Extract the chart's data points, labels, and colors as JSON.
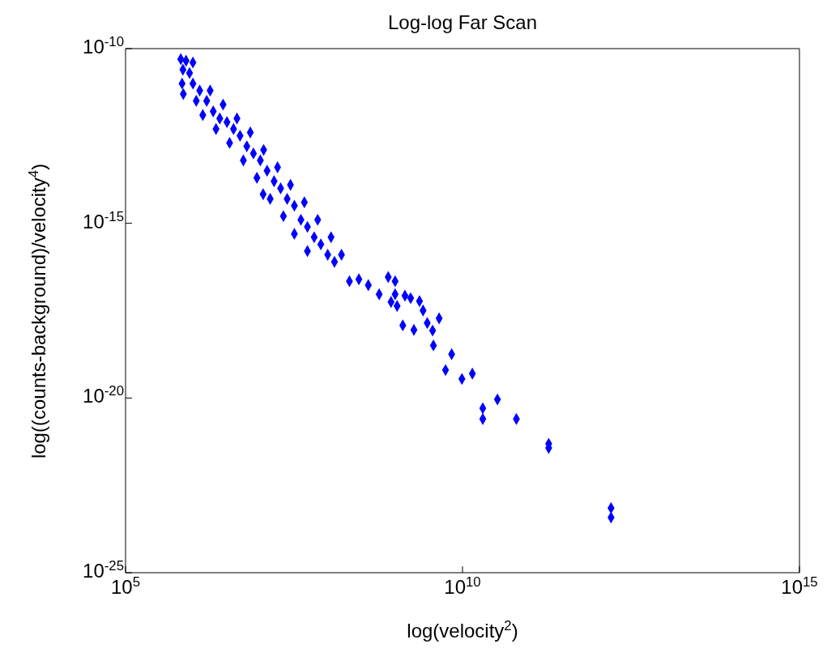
{
  "chart_data": {
    "type": "scatter",
    "title": "Log-log Far Scan",
    "xlabel": "log(velocity$^{2}$)",
    "ylabel": "log((counts-background)/velocity$^{4}$)",
    "log": "xy",
    "grid": false,
    "legend": false,
    "marker": "diamond",
    "xlim": [
      100000.0,
      1000000000000000.0
    ],
    "xticks": [
      {
        "value": 100000.0,
        "label": "10$^{5}$"
      },
      {
        "value": 10000000000.0,
        "label": "10$^{10}$"
      },
      {
        "value": 1000000000000000.0,
        "label": "10$^{15}$"
      }
    ],
    "ylim": [
      1e-25,
      1e-10
    ],
    "yticks": [
      {
        "value": 1e-25,
        "label": "10$^{-25}$"
      },
      {
        "value": 1e-20,
        "label": "10$^{-20}$"
      },
      {
        "value": 1e-15,
        "label": "10$^{-15}$"
      },
      {
        "value": 1e-10,
        "label": "10$^{-10}$"
      }
    ],
    "series": [
      {
        "color": "#0000ff",
        "x": [
          660000.0,
          790000.0,
          710000.0,
          890000.0,
          690000.0,
          1000000.0,
          1260000.0,
          720000.0,
          1120000.0,
          1600000.0,
          2000000.0,
          1400000.0,
          2500000.0,
          3200000.0,
          2200000.0,
          4000000.0,
          5000000.0,
          3500000.0,
          6300000.0,
          7900000.0,
          5600000.0,
          10000000.0,
          12600000.0,
          8900000.0,
          16000000.0,
          20000000.0,
          14000000.0,
          25000000.0,
          32000000.0,
          22000000.0,
          40000000.0,
          50000000.0,
          32000000.0,
          63000000.0,
          79000000.0,
          50000000.0,
          100000000.0,
          126000000.0,
          11000000.0,
          210000000.0,
          290000000.0,
          400000000.0,
          580000000.0,
          1000000000.0,
          1400000000.0,
          1700000000.0,
          2300000000.0,
          870000000.0,
          1070000000.0,
          2600000000.0,
          4500000000.0,
          1300000000.0,
          1900000000.0,
          3000000000.0,
          3600000000.0,
          3700000000.0,
          6900000000.0,
          1000000000.0,
          790000000.0,
          5600000000.0,
          9800000000.0,
          14000000000.0,
          33000000000.0,
          20000000000.0,
          20000000000.0,
          63000000000.0,
          190000000000.0,
          190000000000.0,
          1600000000000.0,
          1600000000000.0,
          1000000.0,
          1800000.0,
          2800000.0,
          4500000.0,
          7100000.0,
          11200000.0,
          18000000.0,
          28000000.0,
          45000000.0,
          71000000.0,
          112000000.0,
          160000000.0
        ],
        "values": [
          5e-11,
          4.5e-11,
          2.5e-11,
          2e-11,
          1e-11,
          1e-11,
          6.3e-12,
          5e-12,
          3.2e-12,
          3.2e-12,
          1.6e-12,
          1.26e-12,
          1e-12,
          7.9e-13,
          5e-13,
          5e-13,
          3.2e-13,
          2e-13,
          1.6e-13,
          1e-13,
          6.3e-14,
          6.3e-14,
          3.2e-14,
          2e-14,
          1.6e-14,
          1e-14,
          5e-15,
          5e-15,
          3.2e-15,
          1.6e-15,
          1.26e-15,
          7.9e-16,
          5e-16,
          4e-16,
          2.5e-16,
          1.6e-16,
          1.26e-16,
          7.9e-17,
          6.8e-15,
          2.2e-17,
          2.5e-17,
          1.7e-17,
          9.3e-18,
          9.3e-18,
          8.5e-18,
          7.2e-18,
          5.9e-18,
          5.6e-18,
          4.3e-18,
          3.2e-18,
          1.9e-18,
          1.2e-18,
          8.9e-19,
          1.4e-18,
          8.5e-19,
          3.2e-19,
          1.8e-19,
          2.2e-17,
          2.9e-17,
          6.3e-20,
          3.5e-20,
          5e-20,
          9.1e-21,
          5.1e-21,
          2.5e-21,
          2.5e-21,
          4.9e-22,
          3.7e-22,
          7.1e-24,
          3.8e-24,
          4e-11,
          6.3e-12,
          2.5e-12,
          1e-12,
          4e-13,
          1.26e-13,
          4e-14,
          1.26e-14,
          4e-15,
          1.26e-15,
          4e-16,
          1.26e-16
        ]
      }
    ]
  }
}
